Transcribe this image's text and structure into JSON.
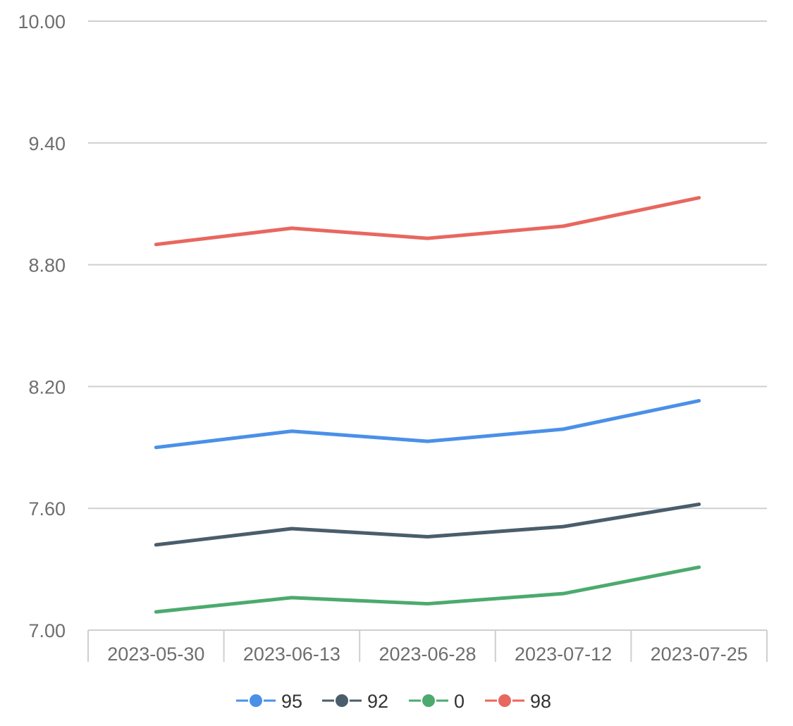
{
  "chart_data": {
    "type": "line",
    "title": "",
    "xlabel": "",
    "ylabel": "",
    "categories": [
      "2023-05-30",
      "2023-06-13",
      "2023-06-28",
      "2023-07-12",
      "2023-07-25"
    ],
    "ylim": [
      7.0,
      10.0
    ],
    "y_ticks": [
      "7.00",
      "7.60",
      "8.20",
      "8.80",
      "9.40",
      "10.00"
    ],
    "grid": true,
    "legend_position": "bottom-center",
    "series": [
      {
        "name": "95",
        "color": "#4a90e8",
        "values": [
          7.9,
          7.98,
          7.93,
          7.99,
          8.13
        ]
      },
      {
        "name": "92",
        "color": "#4a5d6b",
        "values": [
          7.42,
          7.5,
          7.46,
          7.51,
          7.62
        ]
      },
      {
        "name": "0",
        "color": "#4caa6e",
        "values": [
          7.09,
          7.16,
          7.13,
          7.18,
          7.31
        ]
      },
      {
        "name": "98",
        "color": "#e8675f",
        "values": [
          8.9,
          8.98,
          8.93,
          8.99,
          9.13
        ]
      }
    ]
  }
}
